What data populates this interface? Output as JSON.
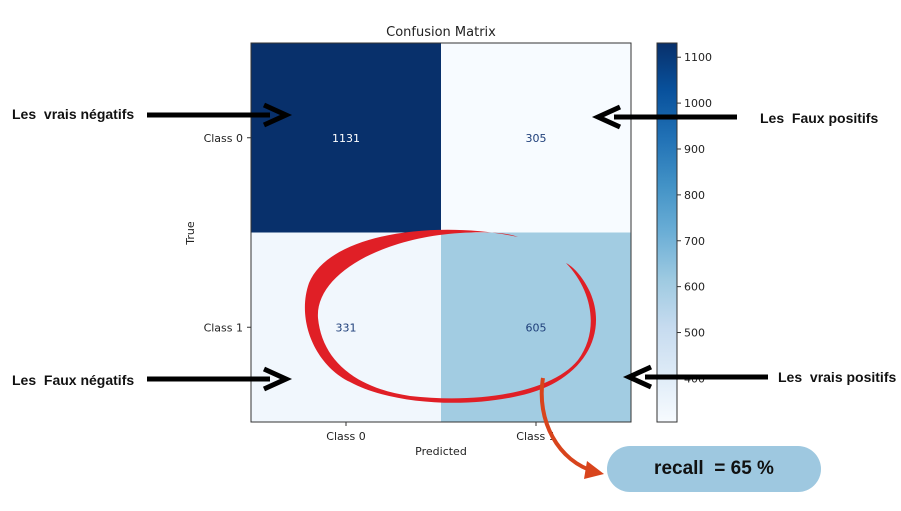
{
  "chart_data": {
    "type": "heatmap",
    "title": "Confusion Matrix",
    "xlabel": "Predicted",
    "ylabel": "True",
    "x_categories": [
      "Class 0",
      "Class 1"
    ],
    "y_categories": [
      "Class 0",
      "Class 1"
    ],
    "matrix": [
      [
        1131,
        305
      ],
      [
        331,
        605
      ]
    ],
    "colormap": "Blues",
    "colorbar": {
      "min": 305,
      "max": 1131,
      "ticks": [
        400,
        500,
        600,
        700,
        800,
        900,
        1000,
        1100
      ]
    }
  },
  "annotations": {
    "true_negatives": "Les  vrais négatifs",
    "false_positives": "Les  Faux positifs",
    "false_negatives": "Les  Faux négatifs",
    "true_positives": "Les  vrais positifs",
    "recall": "recall  = 65 %"
  },
  "colors": {
    "arrow": "#000000",
    "ellipse": "#e01f26",
    "curved_arrow": "#d8441c",
    "pill": "#9ec8e0",
    "frame": "#333333"
  }
}
